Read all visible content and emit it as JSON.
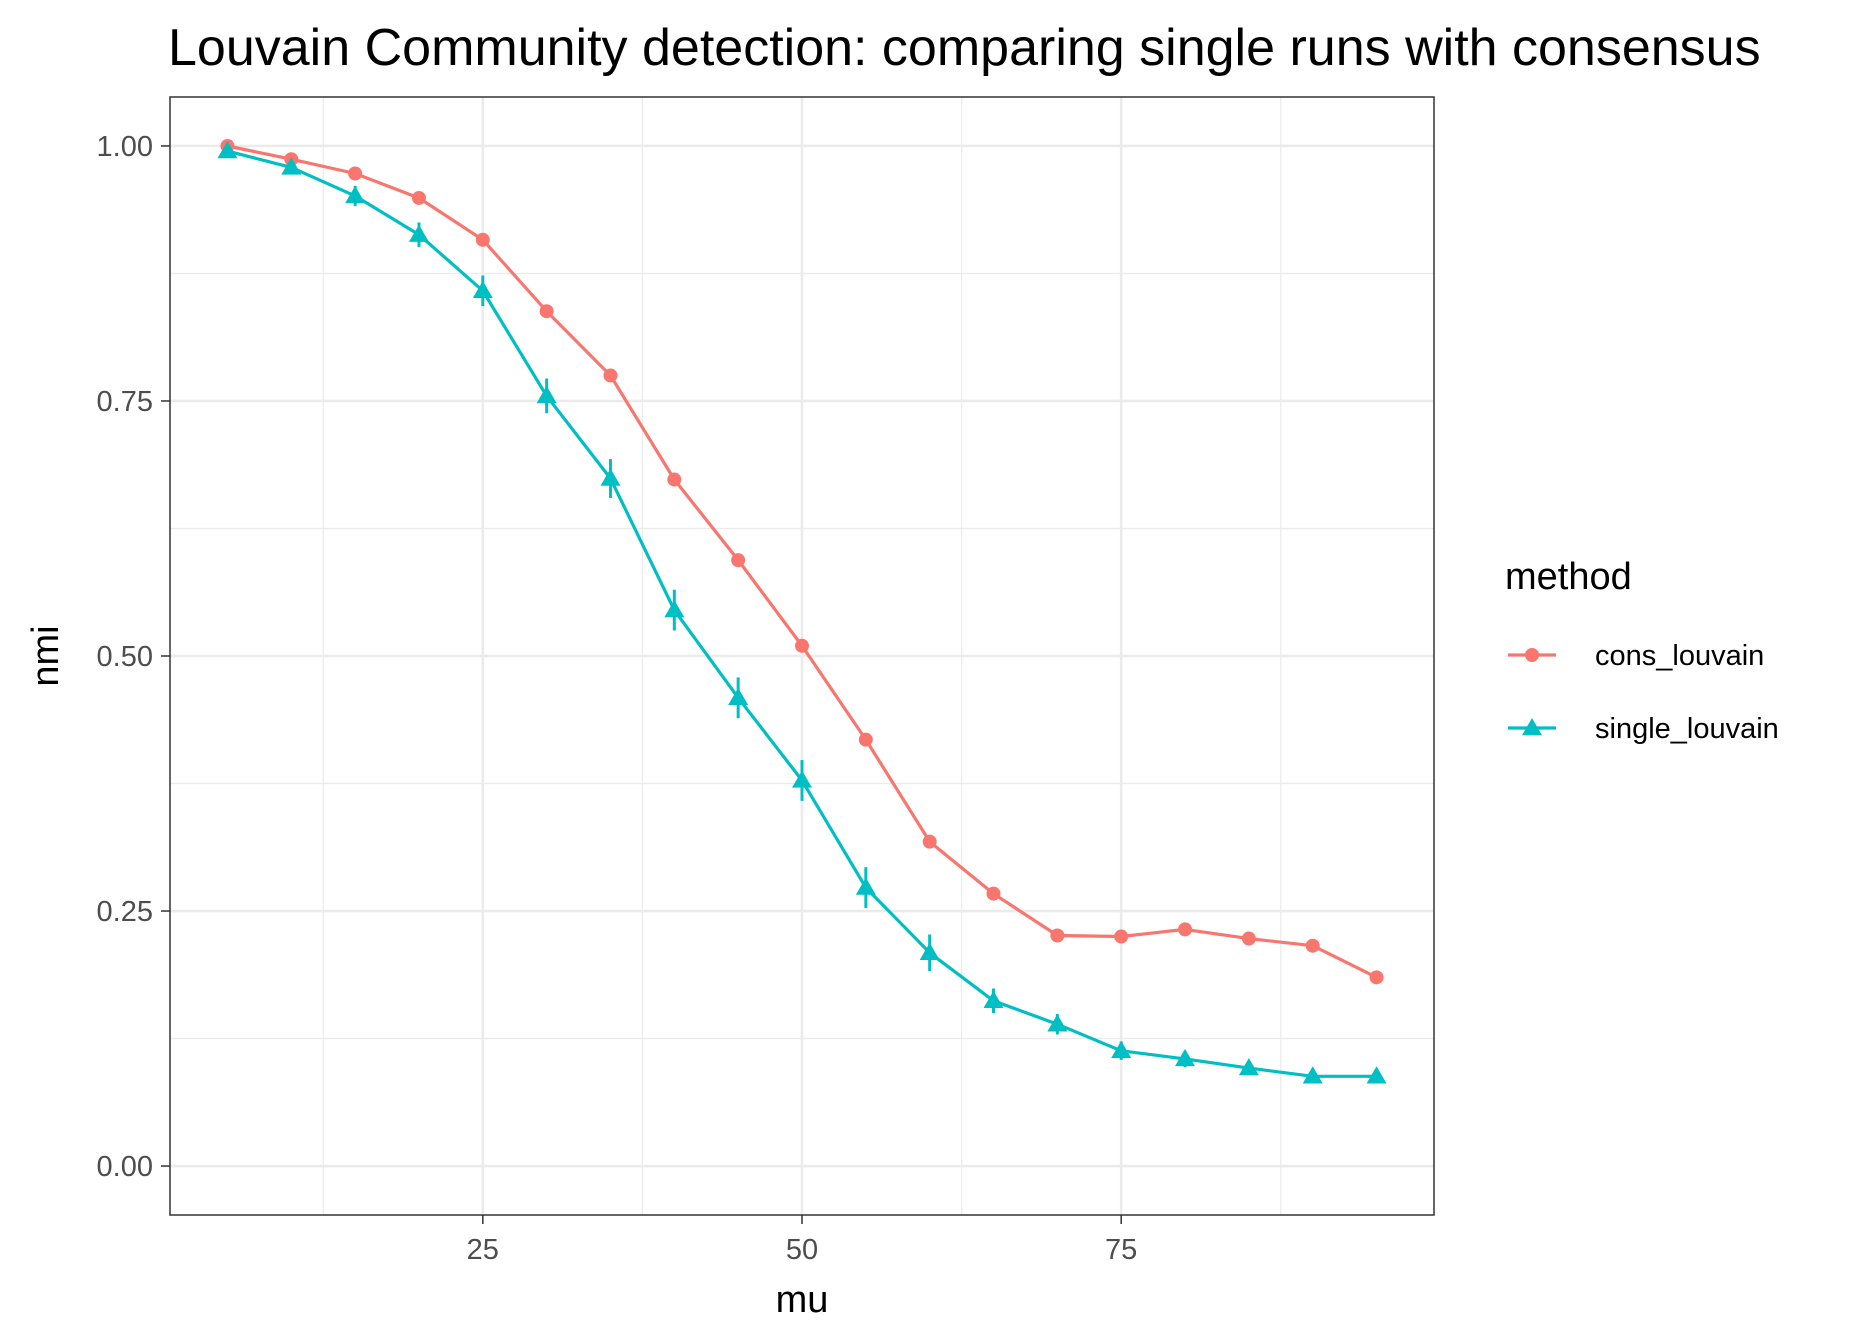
{
  "chart_data": {
    "type": "line",
    "title": "Louvain Community detection: comparing single runs with consensus",
    "xlabel": "mu",
    "ylabel": "nmi",
    "xlim": [
      0.5,
      99.5
    ],
    "ylim": [
      -0.048,
      1.048
    ],
    "x_ticks": [
      25,
      50,
      75
    ],
    "x_tick_labels": [
      "25",
      "50",
      "75"
    ],
    "x_minor_ticks": [
      12.5,
      37.5,
      62.5,
      87.5
    ],
    "y_ticks": [
      0,
      0.25,
      0.5,
      0.75,
      1
    ],
    "y_tick_labels": [
      "0.00",
      "0.25",
      "0.50",
      "0.75",
      "1.00"
    ],
    "y_minor_ticks": [
      0.125,
      0.375,
      0.625,
      0.875
    ],
    "grid": true,
    "legend": {
      "title": "method",
      "position": "right"
    },
    "x": [
      5,
      10,
      15,
      20,
      25,
      30,
      35,
      40,
      45,
      50,
      55,
      60,
      65,
      70,
      75,
      80,
      85,
      90,
      95
    ],
    "series": [
      {
        "name": "cons_louvain",
        "color": "#F8766D",
        "marker": "circle",
        "values": [
          1.0,
          0.987,
          0.973,
          0.949,
          0.908,
          0.838,
          0.775,
          0.673,
          0.594,
          0.51,
          0.418,
          0.318,
          0.267,
          0.226,
          0.225,
          0.232,
          0.223,
          0.216,
          0.185
        ]
      },
      {
        "name": "single_louvain",
        "color": "#00BFC4",
        "marker": "triangle",
        "values": [
          0.995,
          0.979,
          0.951,
          0.913,
          0.858,
          0.755,
          0.674,
          0.545,
          0.459,
          0.378,
          0.273,
          0.209,
          0.162,
          0.139,
          0.113,
          0.105,
          0.096,
          0.088,
          0.088
        ],
        "error": [
          0.004,
          0.006,
          0.01,
          0.012,
          0.015,
          0.017,
          0.019,
          0.02,
          0.02,
          0.02,
          0.02,
          0.018,
          0.012,
          0.01,
          0.009,
          0.008,
          0.007,
          0.007,
          0.006
        ]
      }
    ]
  }
}
